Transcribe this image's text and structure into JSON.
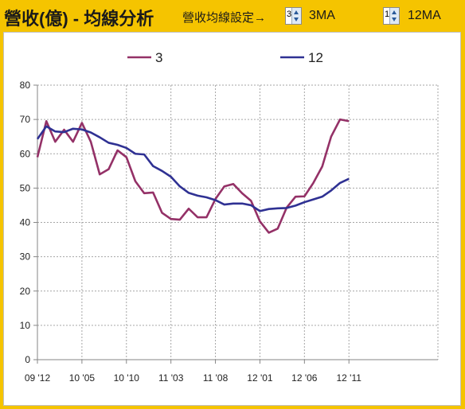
{
  "header": {
    "title": "營收(億) - 均線分析",
    "settings_label": "營收均線設定→",
    "short_ma": {
      "value": "3",
      "label": "3MA"
    },
    "long_ma": {
      "value": "12",
      "label": "12MA"
    }
  },
  "colors": {
    "short_series": "#943167",
    "long_series": "#2f3193",
    "header_bg": "#f5c400"
  },
  "chart_data": {
    "type": "line",
    "legend_position": "top",
    "grid": true,
    "ylim": [
      0,
      80
    ],
    "yticks": [
      0,
      10,
      20,
      30,
      40,
      50,
      60,
      70,
      80
    ],
    "xlim": [
      0,
      45
    ],
    "xticks": [
      {
        "i": 0,
        "label": "09 '12"
      },
      {
        "i": 5,
        "label": "10 '05"
      },
      {
        "i": 10,
        "label": "10 '10"
      },
      {
        "i": 15,
        "label": "11 '03"
      },
      {
        "i": 20,
        "label": "11 '08"
      },
      {
        "i": 25,
        "label": "12 '01"
      },
      {
        "i": 30,
        "label": "12 '06"
      },
      {
        "i": 35,
        "label": "12 '11"
      }
    ],
    "series": [
      {
        "name": "3",
        "values": [
          [
            0,
            59
          ],
          [
            1,
            69.5
          ],
          [
            2,
            63.5
          ],
          [
            3,
            67
          ],
          [
            4,
            63.5
          ],
          [
            5,
            69
          ],
          [
            6,
            63.5
          ],
          [
            7,
            54
          ],
          [
            8,
            55.5
          ],
          [
            9,
            61
          ],
          [
            10,
            59
          ],
          [
            11,
            52
          ],
          [
            12,
            48.5
          ],
          [
            13,
            48.7
          ],
          [
            14,
            42.8
          ],
          [
            15,
            41
          ],
          [
            16,
            40.8
          ],
          [
            17,
            44
          ],
          [
            18,
            41.5
          ],
          [
            19,
            41.5
          ],
          [
            20,
            46.8
          ],
          [
            21,
            50.5
          ],
          [
            22,
            51.2
          ],
          [
            23,
            48.5
          ],
          [
            24,
            46.3
          ],
          [
            25,
            40.3
          ],
          [
            26,
            37
          ],
          [
            27,
            38.2
          ],
          [
            28,
            44.3
          ],
          [
            29,
            47.5
          ],
          [
            30,
            47.6
          ],
          [
            31,
            51.5
          ],
          [
            32,
            56.3
          ],
          [
            33,
            65
          ],
          [
            34,
            70
          ],
          [
            35,
            69.5
          ]
        ]
      },
      {
        "name": "12",
        "values": [
          [
            0,
            64.3
          ],
          [
            1,
            68
          ],
          [
            2,
            66.5
          ],
          [
            3,
            66.3
          ],
          [
            4,
            67.3
          ],
          [
            5,
            67.1
          ],
          [
            6,
            66.2
          ],
          [
            7,
            64.8
          ],
          [
            8,
            63.2
          ],
          [
            9,
            62.6
          ],
          [
            10,
            61.7
          ],
          [
            11,
            60
          ],
          [
            12,
            59.8
          ],
          [
            13,
            56.4
          ],
          [
            14,
            55
          ],
          [
            15,
            53.3
          ],
          [
            16,
            50.5
          ],
          [
            17,
            48.6
          ],
          [
            18,
            47.8
          ],
          [
            19,
            47.3
          ],
          [
            20,
            46.5
          ],
          [
            21,
            45.2
          ],
          [
            22,
            45.5
          ],
          [
            23,
            45.5
          ],
          [
            24,
            45
          ],
          [
            25,
            43.3
          ],
          [
            26,
            43.9
          ],
          [
            27,
            44.1
          ],
          [
            28,
            44.2
          ],
          [
            29,
            44.9
          ],
          [
            30,
            45.9
          ],
          [
            31,
            46.7
          ],
          [
            32,
            47.5
          ],
          [
            33,
            49.3
          ],
          [
            34,
            51.5
          ],
          [
            35,
            52.7
          ]
        ]
      }
    ]
  }
}
